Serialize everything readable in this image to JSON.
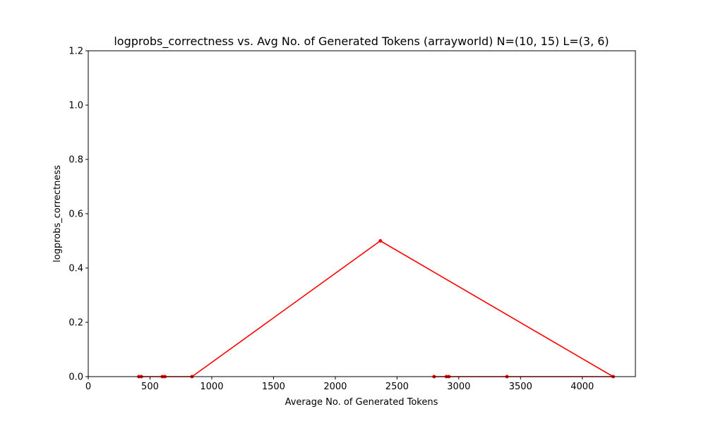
{
  "chart_data": {
    "type": "line",
    "title": "logprobs_correctness vs. Avg No. of Generated Tokens (arrayworld) N=(10, 15) L=(3, 6)",
    "xlabel": "Average No. of Generated Tokens",
    "ylabel": "logprobs_correctness",
    "xlim": [
      0,
      4430
    ],
    "ylim": [
      0,
      1.2
    ],
    "x_ticks": [
      0,
      500,
      1000,
      1500,
      2000,
      2500,
      3000,
      3500,
      4000
    ],
    "x_tick_labels": [
      "0",
      "500",
      "1000",
      "1500",
      "2000",
      "2500",
      "3000",
      "3500",
      "4000"
    ],
    "y_ticks": [
      0,
      0.2,
      0.4,
      0.6,
      0.8,
      1.0,
      1.2
    ],
    "y_tick_labels": [
      "0.0",
      "0.2",
      "0.4",
      "0.6",
      "0.8",
      "1.0",
      "1.2"
    ],
    "grid": false,
    "legend": false,
    "color": "#ff0000",
    "series": [
      {
        "x": [
          410,
          430,
          600,
          620,
          840,
          2365,
          4250,
          3390,
          2920,
          2900,
          2800
        ],
        "y": [
          0,
          0,
          0,
          0,
          0,
          0.5,
          0,
          0,
          0,
          0,
          0
        ]
      }
    ]
  }
}
